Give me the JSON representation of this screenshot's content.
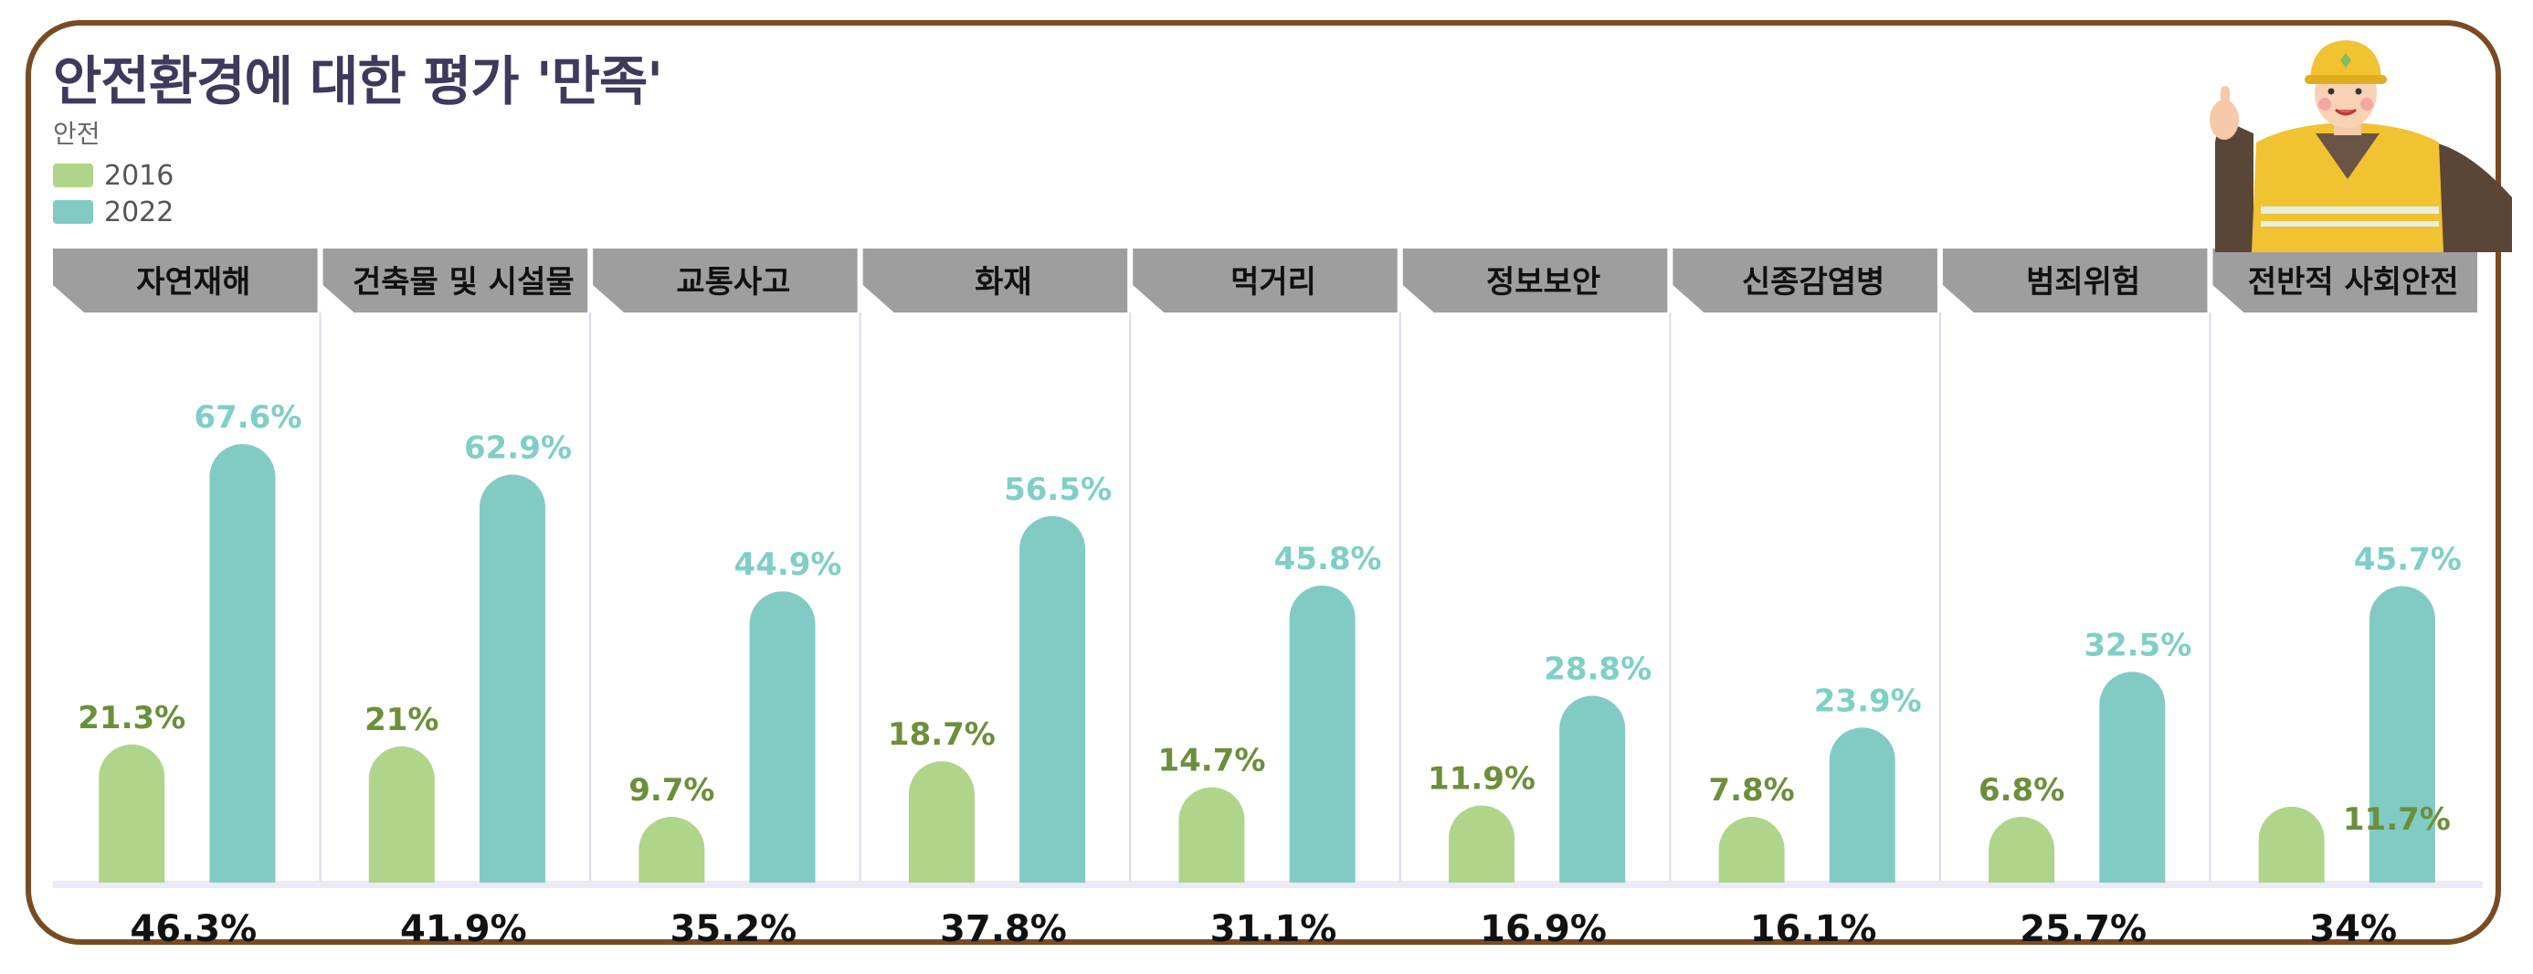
{
  "header": {
    "title": "안전환경에 대한 평가 '만족'",
    "subtitle": "안전"
  },
  "colors": {
    "series_2016": "#aed58a",
    "series_2022": "#82cbc4",
    "header_band": "#9e9e9e",
    "frame": "#7a4b22"
  },
  "illustration": {
    "icon": "construction-worker-thumbs-up-icon"
  },
  "chart_data": {
    "type": "bar",
    "title": "안전환경에 대한 평가 '만족'",
    "xlabel": "",
    "ylabel": "",
    "ylim": [
      0,
      80
    ],
    "grid": false,
    "legend": "top-left",
    "categories": [
      "자연재해",
      "건축물 및 시설물",
      "교통사고",
      "화재",
      "먹거리",
      "정보보안",
      "신종감염병",
      "범죄위험",
      "전반적 사회안전"
    ],
    "series": [
      {
        "name": "2016",
        "values": [
          21.3,
          21,
          9.7,
          18.7,
          14.7,
          11.9,
          7.8,
          6.8,
          11.7
        ],
        "labels": [
          "21.3%",
          "21%",
          "9.7%",
          "18.7%",
          "14.7%",
          "11.9%",
          "7.8%",
          "6.8%",
          "11.7%"
        ]
      },
      {
        "name": "2022",
        "values": [
          67.6,
          62.9,
          44.9,
          56.5,
          45.8,
          28.8,
          23.9,
          32.5,
          45.7
        ],
        "labels": [
          "67.6%",
          "62.9%",
          "44.9%",
          "56.5%",
          "45.8%",
          "28.8%",
          "23.9%",
          "32.5%",
          "45.7%"
        ]
      }
    ],
    "totals": [
      "46.3%",
      "41.9%",
      "35.2%",
      "37.8%",
      "31.1%",
      "16.9%",
      "16.1%",
      "25.7%",
      "34%"
    ]
  }
}
